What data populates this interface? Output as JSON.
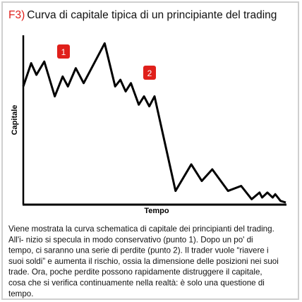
{
  "chart_data": {
    "type": "line",
    "title_prefix": "F3)",
    "title": "Curva di capitale tipica di un principiante del trading",
    "ylabel": "Capitale",
    "xlabel": "Tempo",
    "annotations": [
      "1",
      "2"
    ],
    "xlim": [
      0,
      100
    ],
    "ylim": [
      0,
      100
    ],
    "series": [
      {
        "color": "#000000",
        "x": [
          0,
          3,
          5,
          8,
          12,
          15,
          17,
          20,
          23,
          31,
          35,
          37,
          39,
          41,
          44,
          46,
          48,
          50,
          58,
          64,
          68,
          72,
          78,
          83,
          87,
          90,
          91,
          93,
          95,
          96,
          98,
          100
        ],
        "values": [
          70,
          84,
          77,
          85,
          64,
          76,
          70,
          81,
          72,
          96,
          70,
          74,
          67,
          72,
          59,
          64,
          58,
          64,
          7,
          23,
          13,
          20,
          7,
          10,
          2,
          6,
          3,
          6,
          3,
          5,
          1,
          0
        ]
      }
    ],
    "caption": [
      "Viene mostrata la curva schematica di capitale dei principianti del trading.",
      "All'i- nizio si specula in modo conservativo (punto 1). Dopo un po' di",
      "tempo, ci saranno una serie di perdite (punto 2). Il trader vuole “riavere i",
      "suoi soldi” e aumenta il rischio, ossia la dimensione delle posizioni nei suoi",
      "trade. Ora, poche perdite possono rapidamente distruggere il capitale,",
      "cosa che si verifica continuamente nella realtà: è solo una questione di",
      "tempo."
    ]
  }
}
